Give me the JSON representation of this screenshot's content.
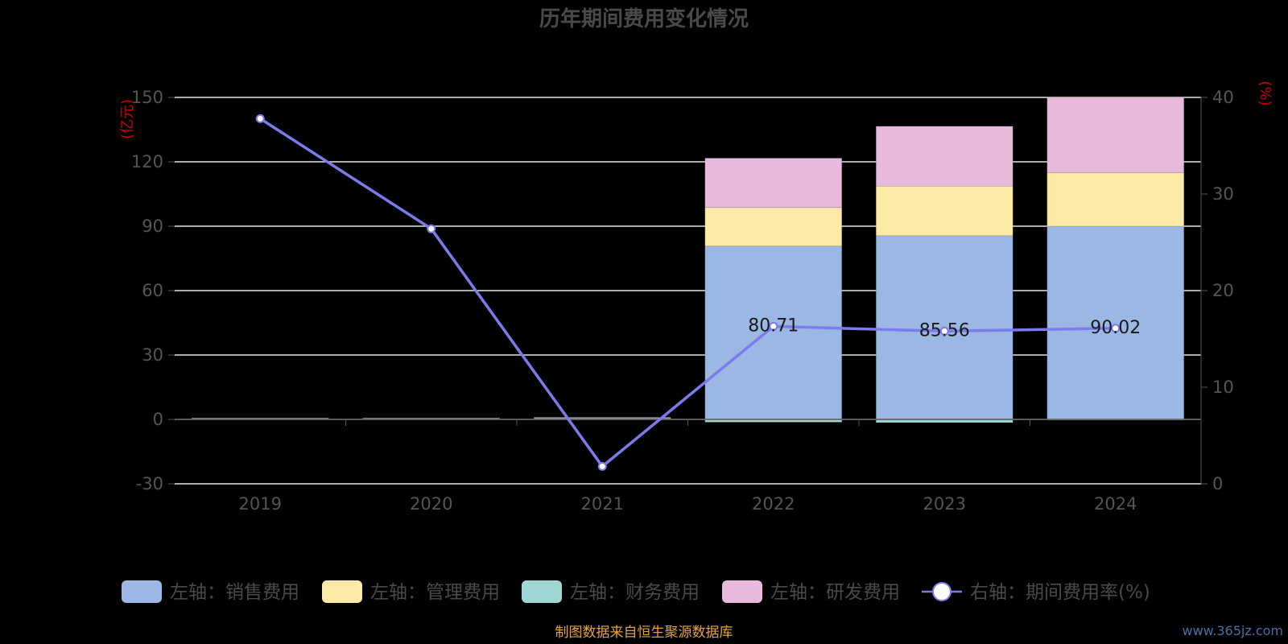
{
  "chart_data": {
    "type": "bar",
    "title": "历年期间费用变化情况",
    "categories": [
      "2019",
      "2020",
      "2021",
      "2022",
      "2023",
      "2024"
    ],
    "stacked": true,
    "left_axis": {
      "unit": "(亿元)",
      "min": -30,
      "max": 150,
      "ticks": [
        -30,
        0,
        30,
        60,
        90,
        120,
        150
      ]
    },
    "right_axis": {
      "unit": "(%)",
      "min": 0,
      "max": 40,
      "ticks": [
        0,
        10,
        20,
        30,
        40
      ]
    },
    "grid": true,
    "legend_position": "bottom",
    "series": [
      {
        "name": "左轴：销售费用",
        "axis": "left",
        "type": "bar",
        "color": "#9ab8e3",
        "values": [
          0.3,
          0.3,
          0.4,
          80.71,
          85.56,
          90.02
        ]
      },
      {
        "name": "左轴：管理费用",
        "axis": "left",
        "type": "bar",
        "color": "#fbe9a6",
        "values": [
          0.2,
          0.2,
          0.3,
          18.0,
          23.0,
          25.0
        ]
      },
      {
        "name": "左轴：财务费用",
        "axis": "left",
        "type": "bar",
        "color": "#9ed6d3",
        "values": [
          0.05,
          0.05,
          0.05,
          -1.3,
          -1.5,
          -0.4
        ]
      },
      {
        "name": "左轴：研发费用",
        "axis": "left",
        "type": "bar",
        "color": "#e8b9da",
        "values": [
          0.1,
          0.1,
          0.2,
          23.0,
          28.0,
          35.0
        ]
      },
      {
        "name": "右轴：期间费用率(%)",
        "axis": "right",
        "type": "line",
        "color": "#7b7bec",
        "values": [
          37.8,
          26.4,
          1.8,
          16.3,
          15.8,
          16.1
        ]
      }
    ],
    "data_labels": [
      {
        "category": "2022",
        "text": "80.71"
      },
      {
        "category": "2023",
        "text": "85.56"
      },
      {
        "category": "2024",
        "text": "90.02"
      }
    ]
  },
  "footer": {
    "source": "制图数据来自恒生聚源数据库",
    "watermark": "www.365jz.com"
  }
}
